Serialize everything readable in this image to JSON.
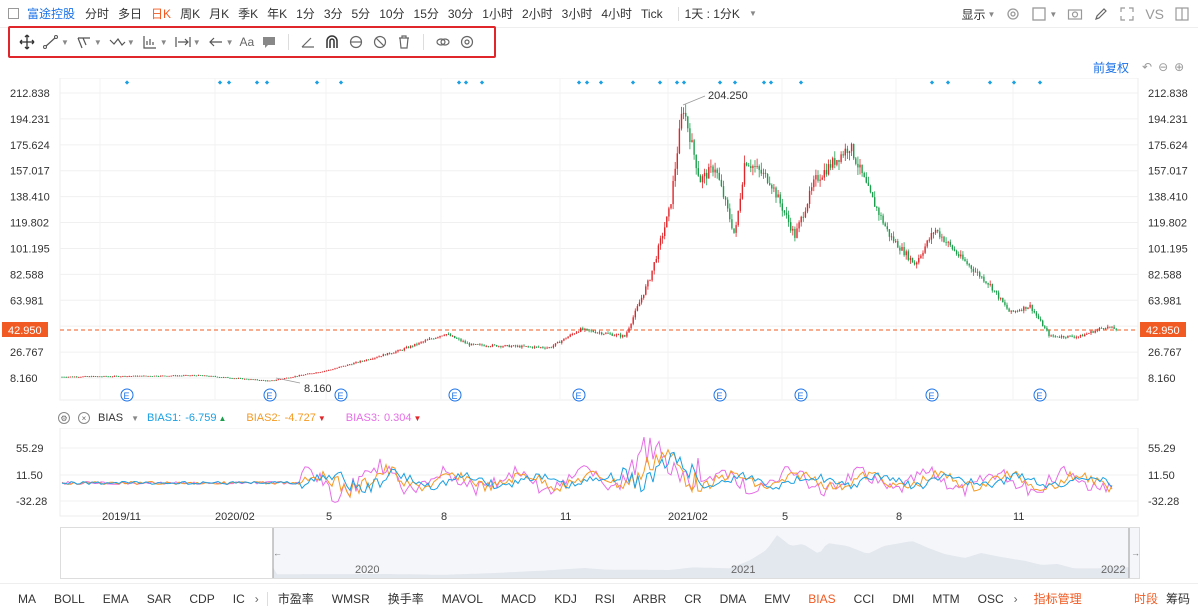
{
  "topbar": {
    "stock_name": "富途控股",
    "periods": [
      "分时",
      "多日",
      "日K",
      "周K",
      "月K",
      "季K",
      "年K",
      "1分",
      "3分",
      "5分",
      "10分",
      "15分",
      "30分",
      "1小时",
      "2小时",
      "3小时",
      "4小时",
      "Tick"
    ],
    "active_period": "日K",
    "combo": "1天 : 1分K",
    "display_label": "显示",
    "vs_label": "VS"
  },
  "drawbar": {
    "text_tool_label": "Aa"
  },
  "qianfuquan": "前复权",
  "price_axis": {
    "labels": [
      "212.838",
      "194.231",
      "175.624",
      "157.017",
      "138.410",
      "119.802",
      "101.195",
      "82.588",
      "63.981",
      "42.950",
      "26.767",
      "8.160"
    ],
    "current_price": "42.950"
  },
  "annotations": {
    "high_label": "204.250",
    "low_label": "8.160",
    "earnings_marker": "E"
  },
  "bias": {
    "title": "BIAS",
    "bias1_label": "BIAS1:",
    "bias1_value": "-6.759",
    "bias2_label": "BIAS2:",
    "bias2_value": "-4.727",
    "bias3_label": "BIAS3:",
    "bias3_value": "0.304",
    "axis_labels": [
      "55.29",
      "11.50",
      "-32.28"
    ],
    "colors": {
      "bias1": "#1ba0e2",
      "bias2": "#f59a23",
      "bias3": "#e66fe6"
    }
  },
  "time_axis": [
    "2019/11",
    "2020/02",
    "5",
    "8",
    "11",
    "2021/02",
    "5",
    "8",
    "11"
  ],
  "navigator_years": [
    "2020",
    "2021",
    "2022"
  ],
  "bottom_tabs": [
    "MA",
    "BOLL",
    "EMA",
    "SAR",
    "CDP",
    "IC"
  ],
  "bottom_tabs2": [
    "市盈率",
    "WMSR",
    "换手率",
    "MAVOL",
    "MACD",
    "KDJ",
    "RSI",
    "ARBR",
    "CR",
    "DMA",
    "EMV",
    "BIAS",
    "CCI",
    "DMI",
    "MTM",
    "OSC"
  ],
  "active_indicator": "BIAS",
  "manage_label": "指标管理",
  "bottom_right": [
    "时段",
    "筹码"
  ],
  "colors": {
    "accent": "#f15a22",
    "link": "#1b72e8",
    "up": "#e0262a",
    "down": "#1a9e4b",
    "highlight_border": "#e0262a"
  }
}
